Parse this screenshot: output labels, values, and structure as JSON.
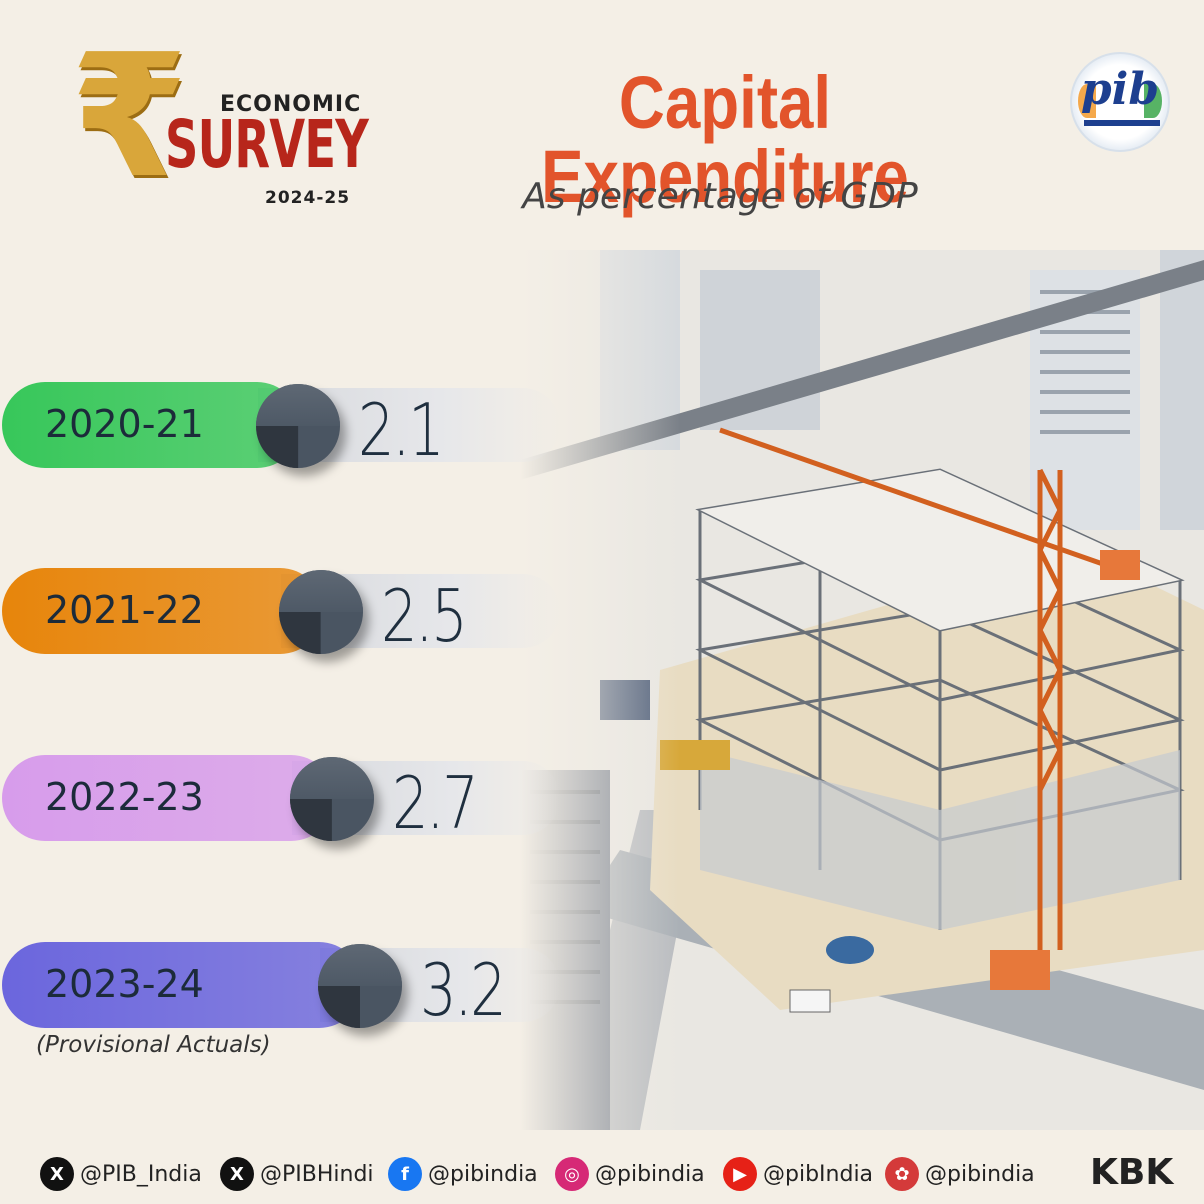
{
  "header": {
    "logo": {
      "economic": "ECONOMIC",
      "survey": "SURVEY",
      "year": "2024-25",
      "symbol": "₹"
    },
    "title": "Capital Expenditure",
    "subtitle": "As percentage of GDP",
    "pib_logo": "pib"
  },
  "chart_data": {
    "type": "bar",
    "title": "Capital Expenditure",
    "subtitle": "As percentage of GDP",
    "categories": [
      "2020-21",
      "2021-22",
      "2022-23",
      "2023-24"
    ],
    "values": [
      2.1,
      2.5,
      2.7,
      3.2
    ],
    "value_labels": [
      "2.1",
      "2.5",
      "2.7",
      "3.2"
    ],
    "bar_colors": [
      "#37c75a",
      "#e7850b",
      "#d79ceb",
      "#6b66dd"
    ],
    "orientation": "horizontal",
    "note": "(Provisional Actuals)"
  },
  "footer": {
    "socials": [
      {
        "icon": "x-icon",
        "handle": "@PIB_India",
        "color": "#111111",
        "glyph": "X"
      },
      {
        "icon": "x-icon",
        "handle": "@PIBHindi",
        "color": "#111111",
        "glyph": "X"
      },
      {
        "icon": "facebook-icon",
        "handle": "@pibindia",
        "color": "#1877f2",
        "glyph": "f"
      },
      {
        "icon": "instagram-icon",
        "handle": "@pibindia",
        "color": "#d62976",
        "glyph": "◎"
      },
      {
        "icon": "youtube-icon",
        "handle": "@pibIndia",
        "color": "#e62117",
        "glyph": "▶"
      },
      {
        "icon": "koo-icon",
        "handle": "@pibindia",
        "color": "#d43a3a",
        "glyph": "✿"
      }
    ],
    "credit": "KBK"
  }
}
